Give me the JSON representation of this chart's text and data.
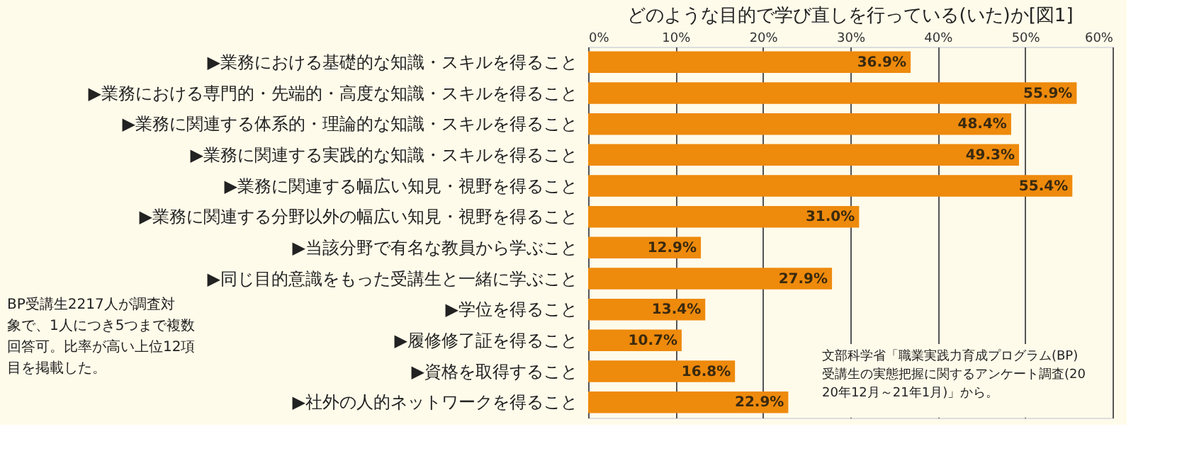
{
  "chart_data": {
    "type": "bar",
    "orientation": "horizontal",
    "title": "どのような目的で学び直しを行っている(いた)か[図1]",
    "categories": [
      "▶業務における基礎的な知識・スキルを得ること",
      "▶業務における専門的・先端的・高度な知識・スキルを得ること",
      "▶業務に関連する体系的・理論的な知識・スキルを得ること",
      "▶業務に関連する実践的な知識・スキルを得ること",
      "▶業務に関連する幅広い知見・視野を得ること",
      "▶業務に関連する分野以外の幅広い知見・視野を得ること",
      "▶当該分野で有名な教員から学ぶこと",
      "▶同じ目的意識をもった受講生と一緒に学ぶこと",
      "▶学位を得ること",
      "▶履修修了証を得ること",
      "▶資格を取得すること",
      "▶社外の人的ネットワークを得ること"
    ],
    "values": [
      36.9,
      55.9,
      48.4,
      49.3,
      55.4,
      31.0,
      12.9,
      27.9,
      13.4,
      10.7,
      16.8,
      22.9
    ],
    "value_labels": [
      "36.9%",
      "55.9%",
      "48.4%",
      "49.3%",
      "55.4%",
      "31.0%",
      "12.9%",
      "27.9%",
      "13.4%",
      "10.7%",
      "16.8%",
      "22.9%"
    ],
    "color": "#ee8a0c",
    "xlim": [
      0,
      60
    ],
    "xticks": [
      {
        "value": 0,
        "label": "0%"
      },
      {
        "value": 10,
        "label": "10%"
      },
      {
        "value": 20,
        "label": "20%"
      },
      {
        "value": 30,
        "label": "30%"
      },
      {
        "value": 40,
        "label": "40%"
      },
      {
        "value": 50,
        "label": "50%"
      },
      {
        "value": 60,
        "label": "60%"
      }
    ],
    "grid": "x",
    "annotations": [
      "BP受講生2217人が調査対象で、1人につき5つまで複数回答可。比率が高い上位12項目を掲載した。",
      "文部科学省「職業実践力育成プログラム(BP)受講生の実態把握に関するアンケート調査(2020年12月～21年1月)」から。"
    ]
  }
}
